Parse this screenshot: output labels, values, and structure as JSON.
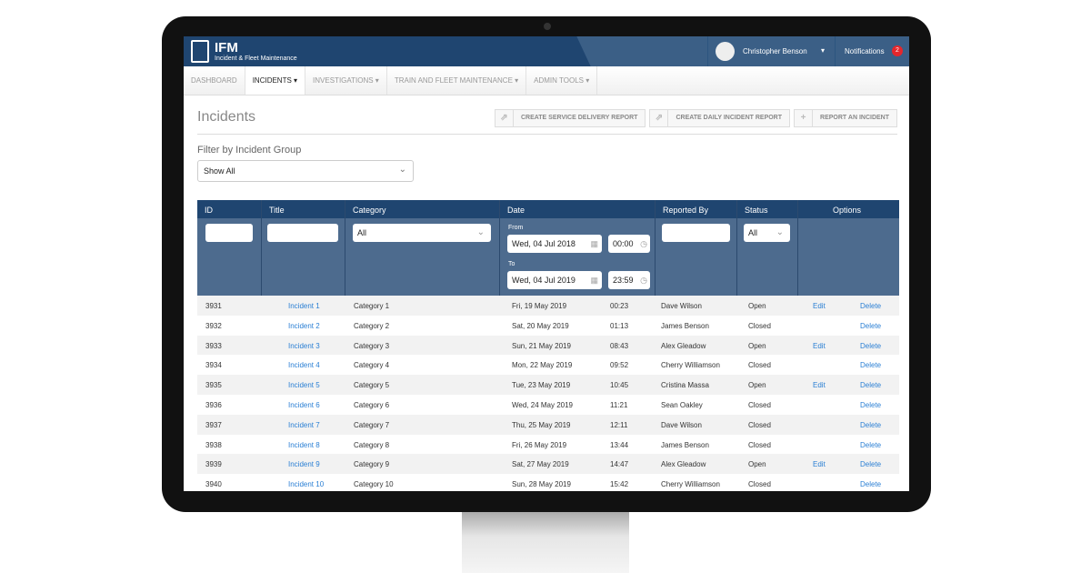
{
  "app": {
    "name": "IFM",
    "subtitle": "Incident & Fleet Maintenance"
  },
  "user": {
    "name": "Christopher Benson"
  },
  "notifications": {
    "label": "Notifications",
    "count": "2"
  },
  "nav": [
    {
      "label": "DASHBOARD"
    },
    {
      "label": "INCIDENTS ▾"
    },
    {
      "label": "INVESTIGATIONS ▾"
    },
    {
      "label": "TRAIN AND FLEET MAINTENANCE ▾"
    },
    {
      "label": "ADMIN TOOLS ▾"
    }
  ],
  "page": {
    "title": "Incidents"
  },
  "actions": {
    "service": "CREATE SERVICE DELIVERY REPORT",
    "daily": "CREATE DAILY INCIDENT REPORT",
    "report": "REPORT AN INCIDENT"
  },
  "filter": {
    "label": "Filter by Incident Group",
    "value": "Show All"
  },
  "table": {
    "headers": {
      "id": "ID",
      "title": "Title",
      "category": "Category",
      "date": "Date",
      "reported": "Reported By",
      "status": "Status",
      "options": "Options"
    },
    "filters": {
      "category": "All",
      "from_label": "From",
      "from_date": "Wed, 04 Jul 2018",
      "from_time": "00:00",
      "to_label": "To",
      "to_date": "Wed, 04 Jul 2019",
      "to_time": "23:59",
      "status": "All"
    },
    "edit_label": "Edit",
    "delete_label": "Delete",
    "rows": [
      {
        "id": "3931",
        "title": "Incident 1",
        "category": "Category 1",
        "date": "Fri, 19 May 2019",
        "time": "00:23",
        "reported": "Dave Wilson",
        "status": "Open"
      },
      {
        "id": "3932",
        "title": "Incident 2",
        "category": "Category 2",
        "date": "Sat, 20 May 2019",
        "time": "01:13",
        "reported": "James Benson",
        "status": "Closed"
      },
      {
        "id": "3933",
        "title": "Incident 3",
        "category": "Category 3",
        "date": "Sun, 21 May 2019",
        "time": "08:43",
        "reported": "Alex Gleadow",
        "status": "Open"
      },
      {
        "id": "3934",
        "title": "Incident 4",
        "category": "Category 4",
        "date": "Mon, 22 May 2019",
        "time": "09:52",
        "reported": "Cherry Williamson",
        "status": "Closed"
      },
      {
        "id": "3935",
        "title": "Incident 5",
        "category": "Category 5",
        "date": "Tue, 23 May 2019",
        "time": "10:45",
        "reported": "Cristina Massa",
        "status": "Open"
      },
      {
        "id": "3936",
        "title": "Incident 6",
        "category": "Category 6",
        "date": "Wed, 24 May 2019",
        "time": "11:21",
        "reported": "Sean Oakley",
        "status": "Closed"
      },
      {
        "id": "3937",
        "title": "Incident 7",
        "category": "Category 7",
        "date": "Thu, 25 May 2019",
        "time": "12:11",
        "reported": "Dave Wilson",
        "status": "Closed"
      },
      {
        "id": "3938",
        "title": "Incident 8",
        "category": "Category 8",
        "date": "Fri, 26 May 2019",
        "time": "13:44",
        "reported": "James Benson",
        "status": "Closed"
      },
      {
        "id": "3939",
        "title": "Incident 9",
        "category": "Category 9",
        "date": "Sat, 27 May 2019",
        "time": "14:47",
        "reported": "Alex Gleadow",
        "status": "Open"
      },
      {
        "id": "3940",
        "title": "Incident 10",
        "category": "Category 10",
        "date": "Sun, 28 May 2019",
        "time": "15:42",
        "reported": "Cherry Williamson",
        "status": "Closed"
      }
    ]
  }
}
